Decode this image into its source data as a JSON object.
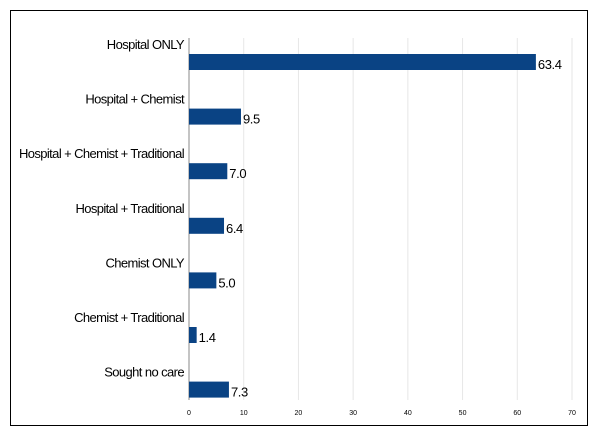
{
  "chart_data": {
    "type": "bar",
    "orientation": "horizontal",
    "categories": [
      "Hospital ONLY",
      "Hospital + Chemist",
      "Hospital + Chemist + Traditional",
      "Hospital + Traditional",
      "Chemist ONLY",
      "Chemist + Traditional",
      "Sought no care"
    ],
    "values": [
      63.4,
      9.5,
      7.0,
      6.4,
      5.0,
      1.4,
      7.3
    ],
    "value_labels": [
      "63.4",
      "9.5",
      "7.0",
      "6.4",
      "5.0",
      "1.4",
      "7.3"
    ],
    "xlim": [
      0,
      70
    ],
    "xticks": [
      0,
      10,
      20,
      30,
      40,
      50,
      60,
      70
    ],
    "grid": true,
    "legend": "none",
    "title": "",
    "xlabel": "",
    "ylabel": "",
    "colors": {
      "bar": "#0a4384",
      "grid": "#e6e6e6",
      "border": "#000000"
    }
  }
}
